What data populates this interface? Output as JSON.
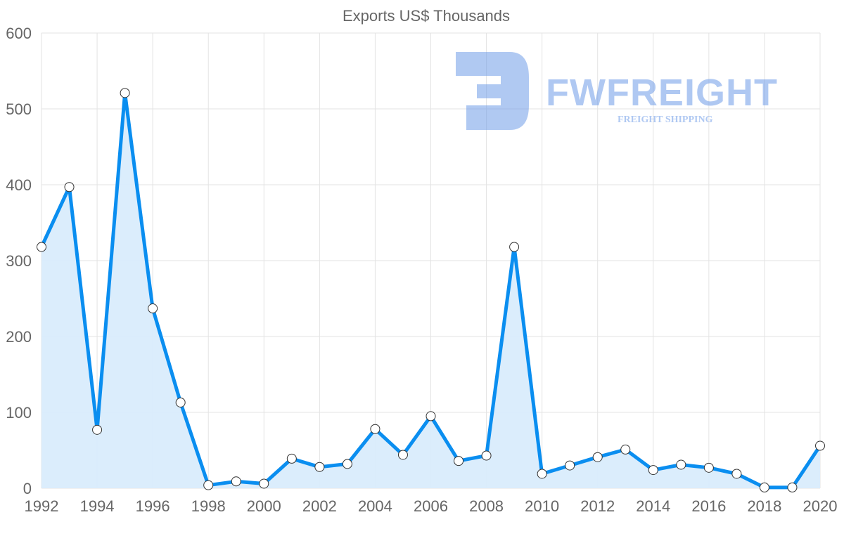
{
  "chart_data": {
    "type": "area",
    "title": "Exports US$ Thousands",
    "xlabel": "",
    "ylabel": "",
    "x": [
      1992,
      1993,
      1994,
      1995,
      1996,
      1997,
      1998,
      1999,
      2000,
      2001,
      2002,
      2003,
      2004,
      2005,
      2006,
      2007,
      2008,
      2009,
      2010,
      2011,
      2012,
      2013,
      2014,
      2015,
      2016,
      2017,
      2018,
      2019,
      2020
    ],
    "series": [
      {
        "name": "Exports US$ Thousands",
        "values": [
          318,
          397,
          77,
          521,
          237,
          113,
          4,
          9,
          6,
          39,
          28,
          32,
          78,
          44,
          95,
          36,
          43,
          318,
          19,
          30,
          41,
          51,
          24,
          31,
          27,
          19,
          1,
          1,
          56
        ]
      }
    ],
    "xlim": [
      1992,
      2020
    ],
    "ylim": [
      0,
      600
    ],
    "x_ticks": [
      "1992",
      "1994",
      "1996",
      "1998",
      "2000",
      "2002",
      "2004",
      "2006",
      "2008",
      "2010",
      "2012",
      "2014",
      "2016",
      "2018",
      "2020"
    ],
    "y_ticks": [
      "0",
      "100",
      "200",
      "300",
      "400",
      "500",
      "600"
    ],
    "grid": true,
    "legend": "none",
    "colors": {
      "line": "#0a8ef0",
      "fill": "#d9ecfc",
      "marker_fill": "#ffffff",
      "marker_stroke": "#333333"
    }
  },
  "watermark": {
    "brand": "FWFREIGHT",
    "tagline": "FREIGHT SHIPPING"
  }
}
